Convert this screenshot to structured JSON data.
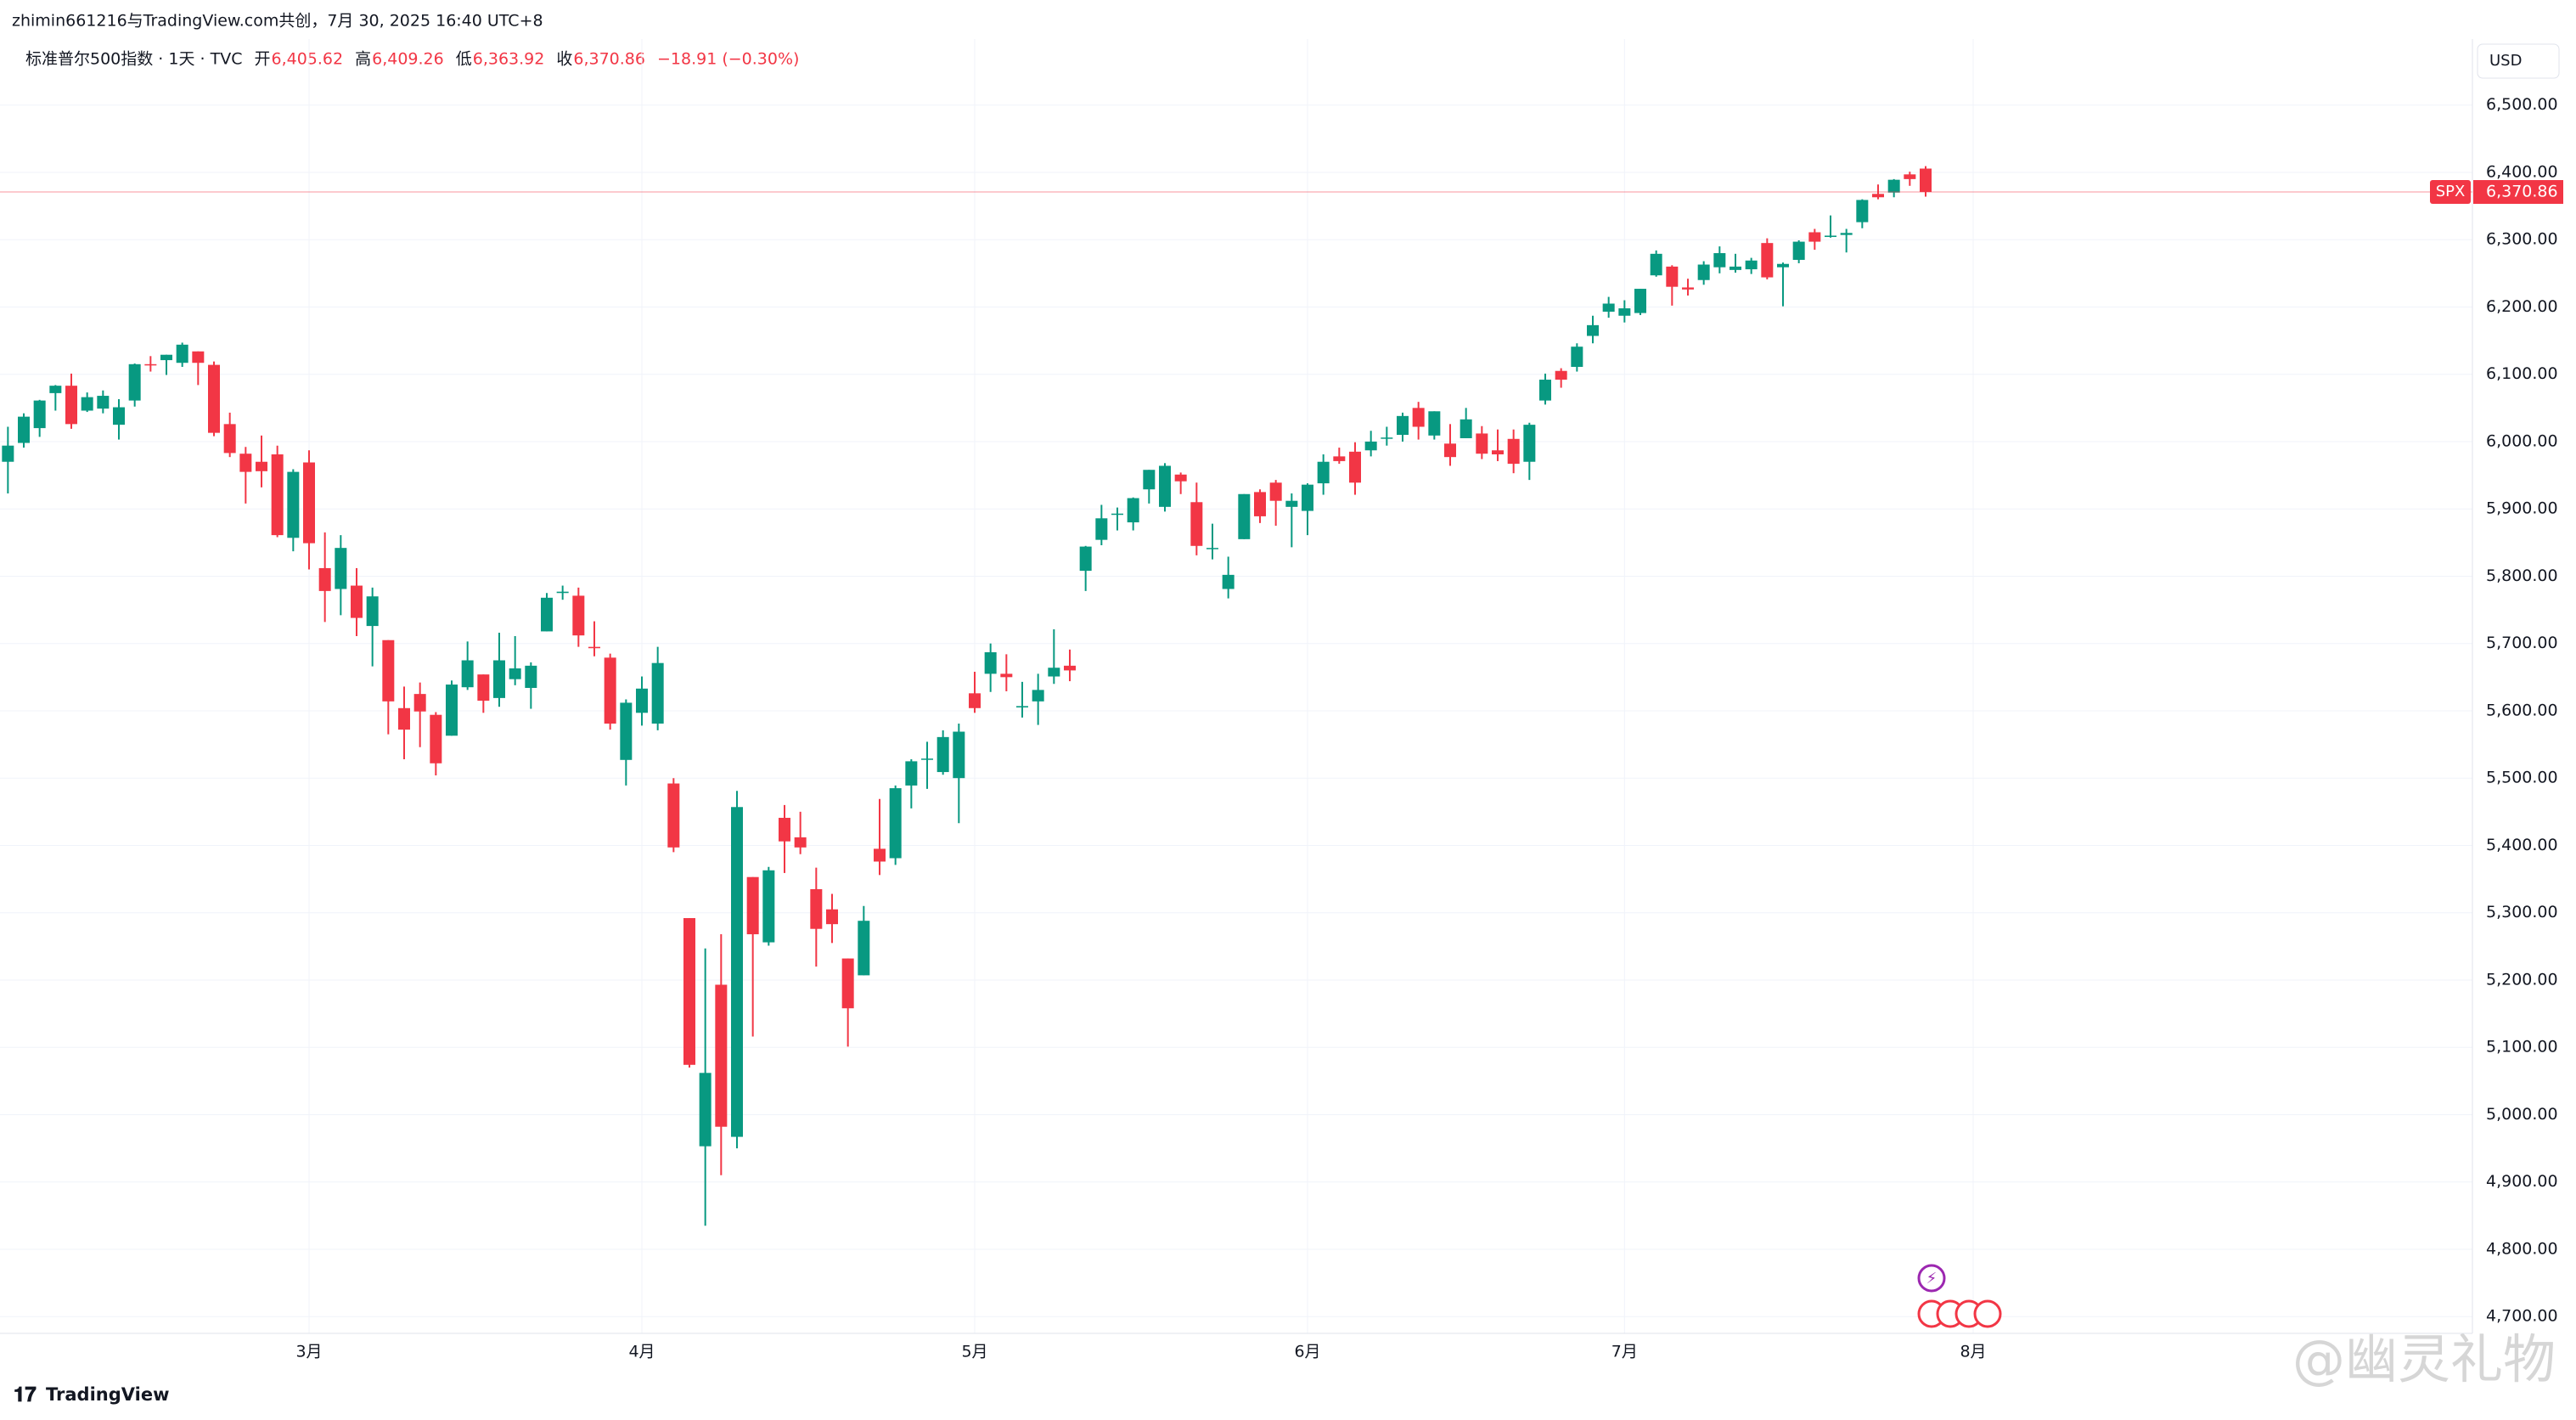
{
  "chart_data": {
    "type": "candlestick",
    "attribution": "zhimin661216与TradingView.com共创，7月 30, 2025 16:40 UTC+8",
    "symbol_title": "标准普尔500指数 · 1天 · TVC",
    "ohlc_legend": {
      "open_label": "开",
      "open": "6,405.62",
      "high_label": "高",
      "high": "6,409.26",
      "low_label": "低",
      "low": "6,363.92",
      "close_label": "收",
      "close": "6,370.86",
      "change": "−18.91 (−0.30%)"
    },
    "currency": "USD",
    "last_price": {
      "value": 6370.86,
      "label": "6,370.86"
    },
    "brand": "TradingView",
    "watermark": "@幽灵礼物",
    "ylim": [
      4675,
      6593
    ],
    "yticks": [
      {
        "value": 4700,
        "label": "4,700.00"
      },
      {
        "value": 4800,
        "label": "4,800.00"
      },
      {
        "value": 4900,
        "label": "4,900.00"
      },
      {
        "value": 5000,
        "label": "5,000.00"
      },
      {
        "value": 5100,
        "label": "5,100.00"
      },
      {
        "value": 5200,
        "label": "5,200.00"
      },
      {
        "value": 5300,
        "label": "5,300.00"
      },
      {
        "value": 5400,
        "label": "5,400.00"
      },
      {
        "value": 5500,
        "label": "5,500.00"
      },
      {
        "value": 5600,
        "label": "5,600.00"
      },
      {
        "value": 5700,
        "label": "5,700.00"
      },
      {
        "value": 5800,
        "label": "5,800.00"
      },
      {
        "value": 5900,
        "label": "5,900.00"
      },
      {
        "value": 6000,
        "label": "6,000.00"
      },
      {
        "value": 6100,
        "label": "6,100.00"
      },
      {
        "value": 6200,
        "label": "6,200.00"
      },
      {
        "value": 6300,
        "label": "6,300.00"
      },
      {
        "value": 6400,
        "label": "6,400.00"
      },
      {
        "value": 6500,
        "label": "6,500.00"
      }
    ],
    "xticks": [
      {
        "value": 19,
        "label": "3月"
      },
      {
        "value": 40,
        "label": "4月"
      },
      {
        "value": 61,
        "label": "5月"
      },
      {
        "value": 82,
        "label": "6月"
      },
      {
        "value": 102,
        "label": "7月"
      },
      {
        "value": 124,
        "label": "8月"
      }
    ],
    "xlim": [
      -0.5,
      155.5
    ],
    "grid": true,
    "series": [
      {
        "name": "SPX",
        "up_color": "#089981",
        "down_color": "#f23645",
        "open": [
          5970,
          5998,
          6020,
          6072,
          6083,
          6046,
          6049,
          6025,
          6061,
          6115,
          6121,
          6117,
          6134,
          6114,
          6026,
          5982,
          5970,
          5981,
          5857,
          5969,
          5812,
          5781,
          5786,
          5726,
          5705,
          5604,
          5625,
          5594,
          5563,
          5635,
          5654,
          5619,
          5647,
          5634,
          5718,
          5775,
          5771,
          5695,
          5679,
          5527,
          5597,
          5581,
          5492,
          5292,
          4953,
          5193,
          4967,
          5353,
          5256,
          5441,
          5412,
          5335,
          5305,
          5232,
          5207,
          5395,
          5381,
          5489,
          5529,
          5509,
          5500,
          5626,
          5655,
          5655,
          5605,
          5614,
          5651,
          5667,
          5808,
          5854,
          5893,
          5880,
          5929,
          5903,
          5951,
          5910,
          5841,
          5781,
          5855,
          5925,
          5939,
          5903,
          5897,
          5938,
          5978,
          5985,
          5987,
          6005,
          6010,
          6050,
          6009,
          5997,
          6005,
          6012,
          5987,
          6004,
          5970,
          6061,
          6105,
          6111,
          6157,
          6193,
          6187,
          6191,
          6247,
          6260,
          6229,
          6240,
          6259,
          6255,
          6256,
          6295,
          6259,
          6270,
          6311,
          6304,
          6307,
          6326,
          6368,
          6370,
          6397,
          6405.62
        ],
        "high": [
          6022,
          6042,
          6062,
          6084,
          6101,
          6073,
          6076,
          6063,
          6116,
          6127,
          6129,
          6147,
          6134,
          6119,
          6043,
          5992,
          6009,
          5994,
          5959,
          5987,
          5865,
          5861,
          5812,
          5783,
          5705,
          5636,
          5642,
          5598,
          5645,
          5703,
          5654,
          5716,
          5711,
          5672,
          5775,
          5786,
          5783,
          5733,
          5685,
          5617,
          5651,
          5695,
          5500,
          5292,
          5247,
          5268,
          5481,
          5353,
          5368,
          5460,
          5450,
          5367,
          5328,
          5232,
          5310,
          5469,
          5489,
          5528,
          5554,
          5571,
          5581,
          5658,
          5700,
          5684,
          5643,
          5655,
          5721,
          5691,
          5845,
          5906,
          5902,
          5917,
          5958,
          5968,
          5954,
          5939,
          5878,
          5829,
          5922,
          5929,
          5943,
          5923,
          5938,
          5981,
          5991,
          5999,
          6016,
          6022,
          6043,
          6059,
          6045,
          6026,
          6050,
          6023,
          6018,
          6018,
          6028,
          6101,
          6109,
          6146,
          6187,
          6215,
          6210,
          6227,
          6284,
          6262,
          6242,
          6268,
          6290,
          6279,
          6273,
          6302,
          6266,
          6299,
          6316,
          6336,
          6316,
          6360,
          6382,
          6390,
          6401,
          6409.26
        ],
        "low": [
          5923,
          5991,
          6007,
          6046,
          6019,
          6044,
          6042,
          6003,
          6052,
          6104,
          6099,
          6111,
          6084,
          6008,
          5977,
          5908,
          5932,
          5858,
          5837,
          5810,
          5732,
          5742,
          5711,
          5666,
          5565,
          5528,
          5546,
          5504,
          5563,
          5631,
          5597,
          5606,
          5638,
          5603,
          5718,
          5765,
          5695,
          5681,
          5572,
          5489,
          5578,
          5571,
          5390,
          5070,
          4835,
          4910,
          4950,
          5116,
          5251,
          5359,
          5387,
          5220,
          5255,
          5101,
          5207,
          5356,
          5371,
          5455,
          5484,
          5505,
          5433,
          5597,
          5628,
          5629,
          5590,
          5579,
          5640,
          5644,
          5778,
          5846,
          5868,
          5868,
          5908,
          5896,
          5922,
          5831,
          5825,
          5767,
          5855,
          5879,
          5875,
          5843,
          5861,
          5921,
          5967,
          5921,
          5978,
          5994,
          6000,
          6003,
          6003,
          5964,
          6005,
          5974,
          5971,
          5953,
          5943,
          6055,
          6080,
          6104,
          6146,
          6184,
          6177,
          6188,
          6245,
          6202,
          6217,
          6233,
          6250,
          6251,
          6249,
          6241,
          6201,
          6265,
          6285,
          6303,
          6281,
          6317,
          6360,
          6363,
          6380,
          6363.92
        ],
        "close": [
          5994,
          6037,
          6061,
          6083,
          6026,
          6066,
          6068,
          6051,
          6115,
          6114,
          6129,
          6144,
          6117,
          6013,
          5983,
          5955,
          5956,
          5861,
          5955,
          5849,
          5778,
          5842,
          5738,
          5770,
          5614,
          5572,
          5599,
          5522,
          5639,
          5675,
          5615,
          5675,
          5663,
          5667,
          5768,
          5777,
          5712,
          5693,
          5581,
          5612,
          5633,
          5671,
          5397,
          5074,
          5062,
          4982,
          5457,
          5268,
          5363,
          5406,
          5397,
          5276,
          5283,
          5158,
          5288,
          5376,
          5485,
          5525,
          5529,
          5561,
          5569,
          5604,
          5687,
          5650,
          5607,
          5631,
          5664,
          5660,
          5844,
          5886,
          5893,
          5916,
          5958,
          5964,
          5941,
          5845,
          5842,
          5802,
          5922,
          5889,
          5912,
          5912,
          5936,
          5970,
          5971,
          5939,
          6000,
          6006,
          6038,
          6022,
          6045,
          5977,
          6033,
          5982,
          5981,
          5967,
          6025,
          6092,
          6092,
          6141,
          6173,
          6205,
          6198,
          6227,
          6279,
          6230,
          6226,
          6263,
          6280,
          6260,
          6269,
          6244,
          6264,
          6297,
          6297,
          6306,
          6310,
          6359,
          6363,
          6389,
          6390,
          6370.86
        ]
      }
    ]
  }
}
